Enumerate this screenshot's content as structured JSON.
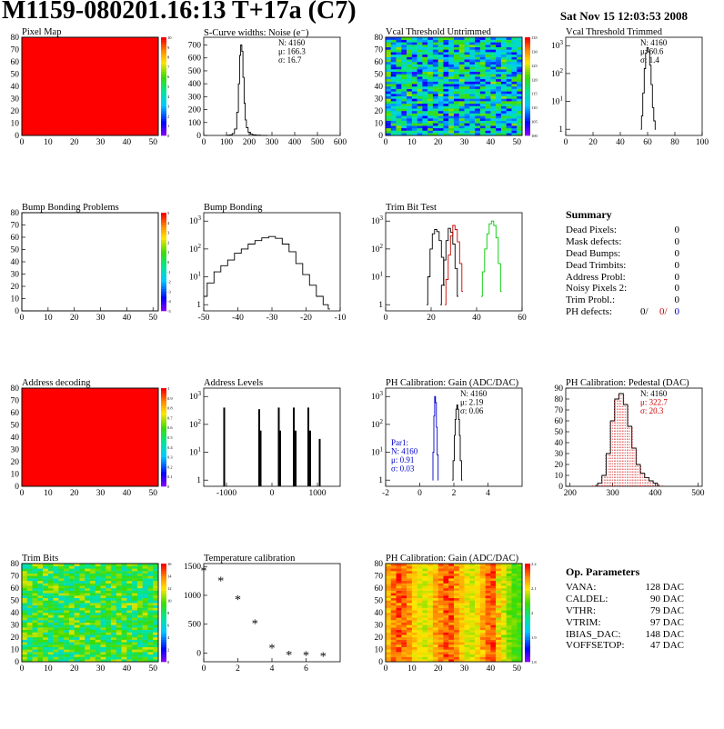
{
  "page": {
    "title": "M1159-080201.16:13 T+17a (C7)",
    "date": "Sat Nov 15 12:03:53 2008"
  },
  "colors": {
    "hist_line": "#000000",
    "map_red": "#ff0000",
    "trim_red": "#cc0000",
    "trim_green": "#00cc00",
    "blue_text": "#0000cc",
    "red_text": "#cc0000"
  },
  "summary": {
    "heading": "Summary",
    "rows": [
      {
        "label": "Dead Pixels:",
        "value": "0"
      },
      {
        "label": "Mask defects:",
        "value": "0"
      },
      {
        "label": "Dead Bumps:",
        "value": "0"
      },
      {
        "label": "Dead Trimbits:",
        "value": "0"
      },
      {
        "label": "Address Probl:",
        "value": "0"
      },
      {
        "label": "Noisy Pixels 2:",
        "value": "0"
      },
      {
        "label": "Trim Probl.:",
        "value": "0"
      }
    ],
    "ph_label": "PH defects:",
    "ph_values": [
      "0/",
      "0/",
      "0"
    ]
  },
  "op_params": {
    "heading": "Op. Parameters",
    "rows": [
      {
        "label": "VANA:",
        "value": "128 DAC"
      },
      {
        "label": "CALDEL:",
        "value": "90 DAC"
      },
      {
        "label": "VTHR:",
        "value": "79 DAC"
      },
      {
        "label": "VTRIM:",
        "value": "97 DAC"
      },
      {
        "label": "IBIAS_DAC:",
        "value": "148 DAC"
      },
      {
        "label": "VOFFSETOP:",
        "value": "47 DAC"
      }
    ]
  },
  "chart_data": [
    {
      "id": "pixel-map",
      "type": "heatmap",
      "title": "Pixel Map",
      "xticks": [
        "0",
        "10",
        "20",
        "30",
        "40",
        "50"
      ],
      "yticks": [
        "0",
        "10",
        "20",
        "30",
        "40",
        "50",
        "60",
        "70",
        "80"
      ],
      "xlim": [
        0,
        52
      ],
      "ylim": [
        0,
        80
      ],
      "fill": "uniform-red",
      "zticks": [
        "0",
        "1",
        "2",
        "3",
        "4",
        "5",
        "6",
        "7",
        "8",
        "9",
        "10"
      ]
    },
    {
      "id": "noise",
      "type": "line",
      "title": "S-Curve widths: Noise (e⁻)",
      "xticks": [
        "0",
        "100",
        "200",
        "300",
        "400",
        "500",
        "600"
      ],
      "yticks": [
        "0",
        "100",
        "200",
        "300",
        "400",
        "500",
        "600",
        "700"
      ],
      "xlim": [
        0,
        600
      ],
      "ylim": [
        0,
        760
      ],
      "stats": [
        "N: 4160",
        "μ: 166.3",
        "σ: 16.7"
      ],
      "series": [
        {
          "x": [
            100,
            110,
            120,
            130,
            140,
            150,
            155,
            160,
            165,
            170,
            175,
            180,
            185,
            190,
            200,
            210,
            220,
            240,
            260,
            280
          ],
          "y": [
            0,
            2,
            5,
            15,
            50,
            180,
            400,
            620,
            700,
            650,
            450,
            250,
            120,
            60,
            25,
            10,
            5,
            2,
            1,
            0
          ]
        }
      ]
    },
    {
      "id": "vcal-untrimmed",
      "type": "heatmap",
      "title": "Vcal Threshold Untrimmed",
      "xticks": [
        "0",
        "10",
        "20",
        "30",
        "40",
        "50"
      ],
      "yticks": [
        "0",
        "10",
        "20",
        "30",
        "40",
        "50",
        "60",
        "70",
        "80"
      ],
      "xlim": [
        0,
        52
      ],
      "ylim": [
        0,
        80
      ],
      "fill": "noisy-blue-green",
      "zticks": [
        "100",
        "105",
        "110",
        "115",
        "120",
        "125",
        "130",
        "135"
      ]
    },
    {
      "id": "vcal-trimmed",
      "type": "line",
      "title": "Vcal Threshold Trimmed",
      "log": true,
      "xticks": [
        "0",
        "20",
        "40",
        "60",
        "80",
        "100"
      ],
      "xlim": [
        0,
        100
      ],
      "ylim": [
        0.6,
        2000
      ],
      "stats": [
        "N: 4160",
        "μ: 60.6",
        "σ: 1.4"
      ],
      "series": [
        {
          "x": [
            55,
            56,
            57,
            58,
            59,
            60,
            61,
            62,
            63,
            64,
            65,
            66
          ],
          "y": [
            1,
            3,
            20,
            150,
            550,
            850,
            600,
            200,
            40,
            6,
            2,
            1
          ]
        }
      ]
    },
    {
      "id": "bump-problems",
      "type": "heatmap",
      "title": "Bump Bonding Problems",
      "xticks": [
        "0",
        "10",
        "20",
        "30",
        "40",
        "50"
      ],
      "yticks": [
        "0",
        "10",
        "20",
        "30",
        "40",
        "50",
        "60",
        "70",
        "80"
      ],
      "xlim": [
        0,
        52
      ],
      "ylim": [
        0,
        80
      ],
      "fill": "empty",
      "zticks": [
        "-5",
        "-4",
        "-3",
        "-2",
        "-1",
        "0",
        "1",
        "2",
        "3",
        "4",
        "5"
      ]
    },
    {
      "id": "bump-bonding",
      "type": "line",
      "title": "Bump Bonding",
      "log": true,
      "xticks": [
        "-50",
        "-40",
        "-30",
        "-20",
        "-10"
      ],
      "xlim": [
        -50,
        -10
      ],
      "ylim": [
        0.6,
        2000
      ],
      "series": [
        {
          "x": [
            -50,
            -48,
            -46,
            -44,
            -42,
            -40,
            -38,
            -36,
            -34,
            -32,
            -30,
            -28,
            -26,
            -24,
            -22,
            -20,
            -18,
            -16,
            -14,
            -13
          ],
          "y": [
            2,
            6,
            15,
            25,
            40,
            70,
            100,
            150,
            200,
            250,
            280,
            240,
            150,
            80,
            30,
            12,
            5,
            2,
            1,
            0.7
          ]
        }
      ]
    },
    {
      "id": "trim-bit-test",
      "type": "line",
      "title": "Trim Bit Test",
      "log": true,
      "xticks": [
        "0",
        "20",
        "40",
        "60"
      ],
      "xlim": [
        0,
        60
      ],
      "ylim": [
        0.6,
        2000
      ],
      "series": [
        {
          "name": "",
          "x": [
            18,
            19,
            20,
            21,
            22,
            23,
            24,
            25,
            26
          ],
          "y": [
            1,
            10,
            100,
            350,
            500,
            420,
            200,
            50,
            5
          ]
        },
        {
          "name": "",
          "x": [
            24,
            25,
            26,
            27,
            28,
            29,
            30,
            31,
            32
          ],
          "y": [
            1,
            5,
            40,
            200,
            550,
            400,
            150,
            20,
            2
          ]
        },
        {
          "name": "",
          "x": [
            26,
            27,
            28,
            29,
            30,
            31,
            32,
            33,
            34
          ],
          "y": [
            1,
            8,
            60,
            300,
            700,
            500,
            180,
            30,
            3
          ]
        },
        {
          "name": "",
          "x": [
            42,
            43,
            44,
            45,
            46,
            47,
            48,
            49,
            50,
            51
          ],
          "y": [
            2,
            15,
            100,
            350,
            800,
            1000,
            700,
            250,
            30,
            3
          ]
        }
      ]
    },
    {
      "id": "address-decoding",
      "type": "heatmap",
      "title": "Address decoding",
      "xticks": [
        "0",
        "10",
        "20",
        "30",
        "40",
        "50"
      ],
      "yticks": [
        "0",
        "10",
        "20",
        "30",
        "40",
        "50",
        "60",
        "70",
        "80"
      ],
      "xlim": [
        0,
        52
      ],
      "ylim": [
        0,
        80
      ],
      "fill": "uniform-red",
      "zticks": [
        "0",
        "0.1",
        "0.2",
        "0.3",
        "0.4",
        "0.5",
        "0.6",
        "0.7",
        "0.8",
        "0.9",
        "1"
      ]
    },
    {
      "id": "address-levels",
      "type": "bar",
      "title": "Address Levels",
      "log": true,
      "xticks": [
        "-1000",
        "0",
        "1000"
      ],
      "xlim": [
        -1500,
        1500
      ],
      "ylim": [
        0.6,
        2000
      ],
      "x": [
        -1050,
        -280,
        -250,
        150,
        180,
        480,
        520,
        800,
        840,
        1050
      ],
      "values": [
        400,
        350,
        60,
        400,
        60,
        400,
        60,
        400,
        60,
        30
      ]
    },
    {
      "id": "ph-gain",
      "type": "line",
      "title": "PH Calibration: Gain (ADC/DAC)",
      "log": true,
      "xticks": [
        "-2",
        "0",
        "2",
        "4"
      ],
      "xlim": [
        -2,
        6
      ],
      "ylim": [
        0.6,
        2000
      ],
      "stats": [
        "N: 4160",
        "μ: 2.19",
        "σ: 0.06"
      ],
      "stats2": [
        "Par1:",
        "N: 4160",
        "μ: 0.91",
        "σ: 0.03"
      ],
      "series": [
        {
          "name": "",
          "x": [
            1.9,
            2.0,
            2.05,
            2.1,
            2.15,
            2.2,
            2.25,
            2.3,
            2.35,
            2.4,
            2.5
          ],
          "y": [
            1,
            5,
            40,
            150,
            350,
            500,
            350,
            150,
            40,
            5,
            1
          ]
        },
        {
          "name": "",
          "x": [
            0.75,
            0.8,
            0.85,
            0.9,
            0.95,
            1.0,
            1.05,
            1.1
          ],
          "y": [
            1,
            10,
            200,
            1000,
            600,
            80,
            8,
            1
          ]
        }
      ]
    },
    {
      "id": "ph-pedestal",
      "type": "line",
      "title": "PH Calibration: Pedestal (DAC)",
      "xticks": [
        "200",
        "300",
        "400",
        "500"
      ],
      "xlim": [
        190,
        510
      ],
      "ylim": [
        0,
        90
      ],
      "stats": [
        "N: 4160",
        "μ: 322.7",
        "σ: 20.3"
      ],
      "series": [
        {
          "x": [
            260,
            270,
            280,
            290,
            300,
            310,
            320,
            330,
            340,
            350,
            360,
            370,
            380,
            390,
            400,
            410
          ],
          "y": [
            1,
            3,
            10,
            30,
            60,
            80,
            85,
            75,
            55,
            35,
            20,
            12,
            8,
            5,
            3,
            1
          ]
        }
      ]
    },
    {
      "id": "trim-bits",
      "type": "heatmap",
      "title": "Trim Bits",
      "xticks": [
        "0",
        "10",
        "20",
        "30",
        "40",
        "50"
      ],
      "yticks": [
        "0",
        "10",
        "20",
        "30",
        "40",
        "50",
        "60",
        "70",
        "80"
      ],
      "xlim": [
        0,
        52
      ],
      "ylim": [
        0,
        80
      ],
      "fill": "noisy-green",
      "zticks": [
        "0",
        "2",
        "4",
        "6",
        "8",
        "10",
        "12",
        "14",
        "16"
      ]
    },
    {
      "id": "temperature",
      "type": "scatter",
      "title": "Temperature calibration",
      "xticks": [
        "0",
        "2",
        "4",
        "6"
      ],
      "yticks": [
        "0",
        "500",
        "1000",
        "1500"
      ],
      "xlim": [
        0,
        8
      ],
      "ylim": [
        -150,
        1550
      ],
      "x": [
        0,
        1,
        2,
        3,
        4,
        5,
        6,
        7
      ],
      "y": [
        1420,
        1240,
        920,
        500,
        80,
        -40,
        -50,
        -60
      ]
    },
    {
      "id": "ph-gain-map",
      "type": "heatmap",
      "title": "PH Calibration: Gain (ADC/DAC)",
      "xticks": [
        "0",
        "10",
        "20",
        "30",
        "40",
        "50"
      ],
      "yticks": [
        "0",
        "10",
        "20",
        "30",
        "40",
        "50",
        "60",
        "70",
        "80"
      ],
      "xlim": [
        0,
        52
      ],
      "ylim": [
        0,
        80
      ],
      "fill": "red-yellow-bands",
      "zticks": [
        "1.8",
        "1.9",
        "2",
        "2.1",
        "2.2"
      ]
    }
  ]
}
